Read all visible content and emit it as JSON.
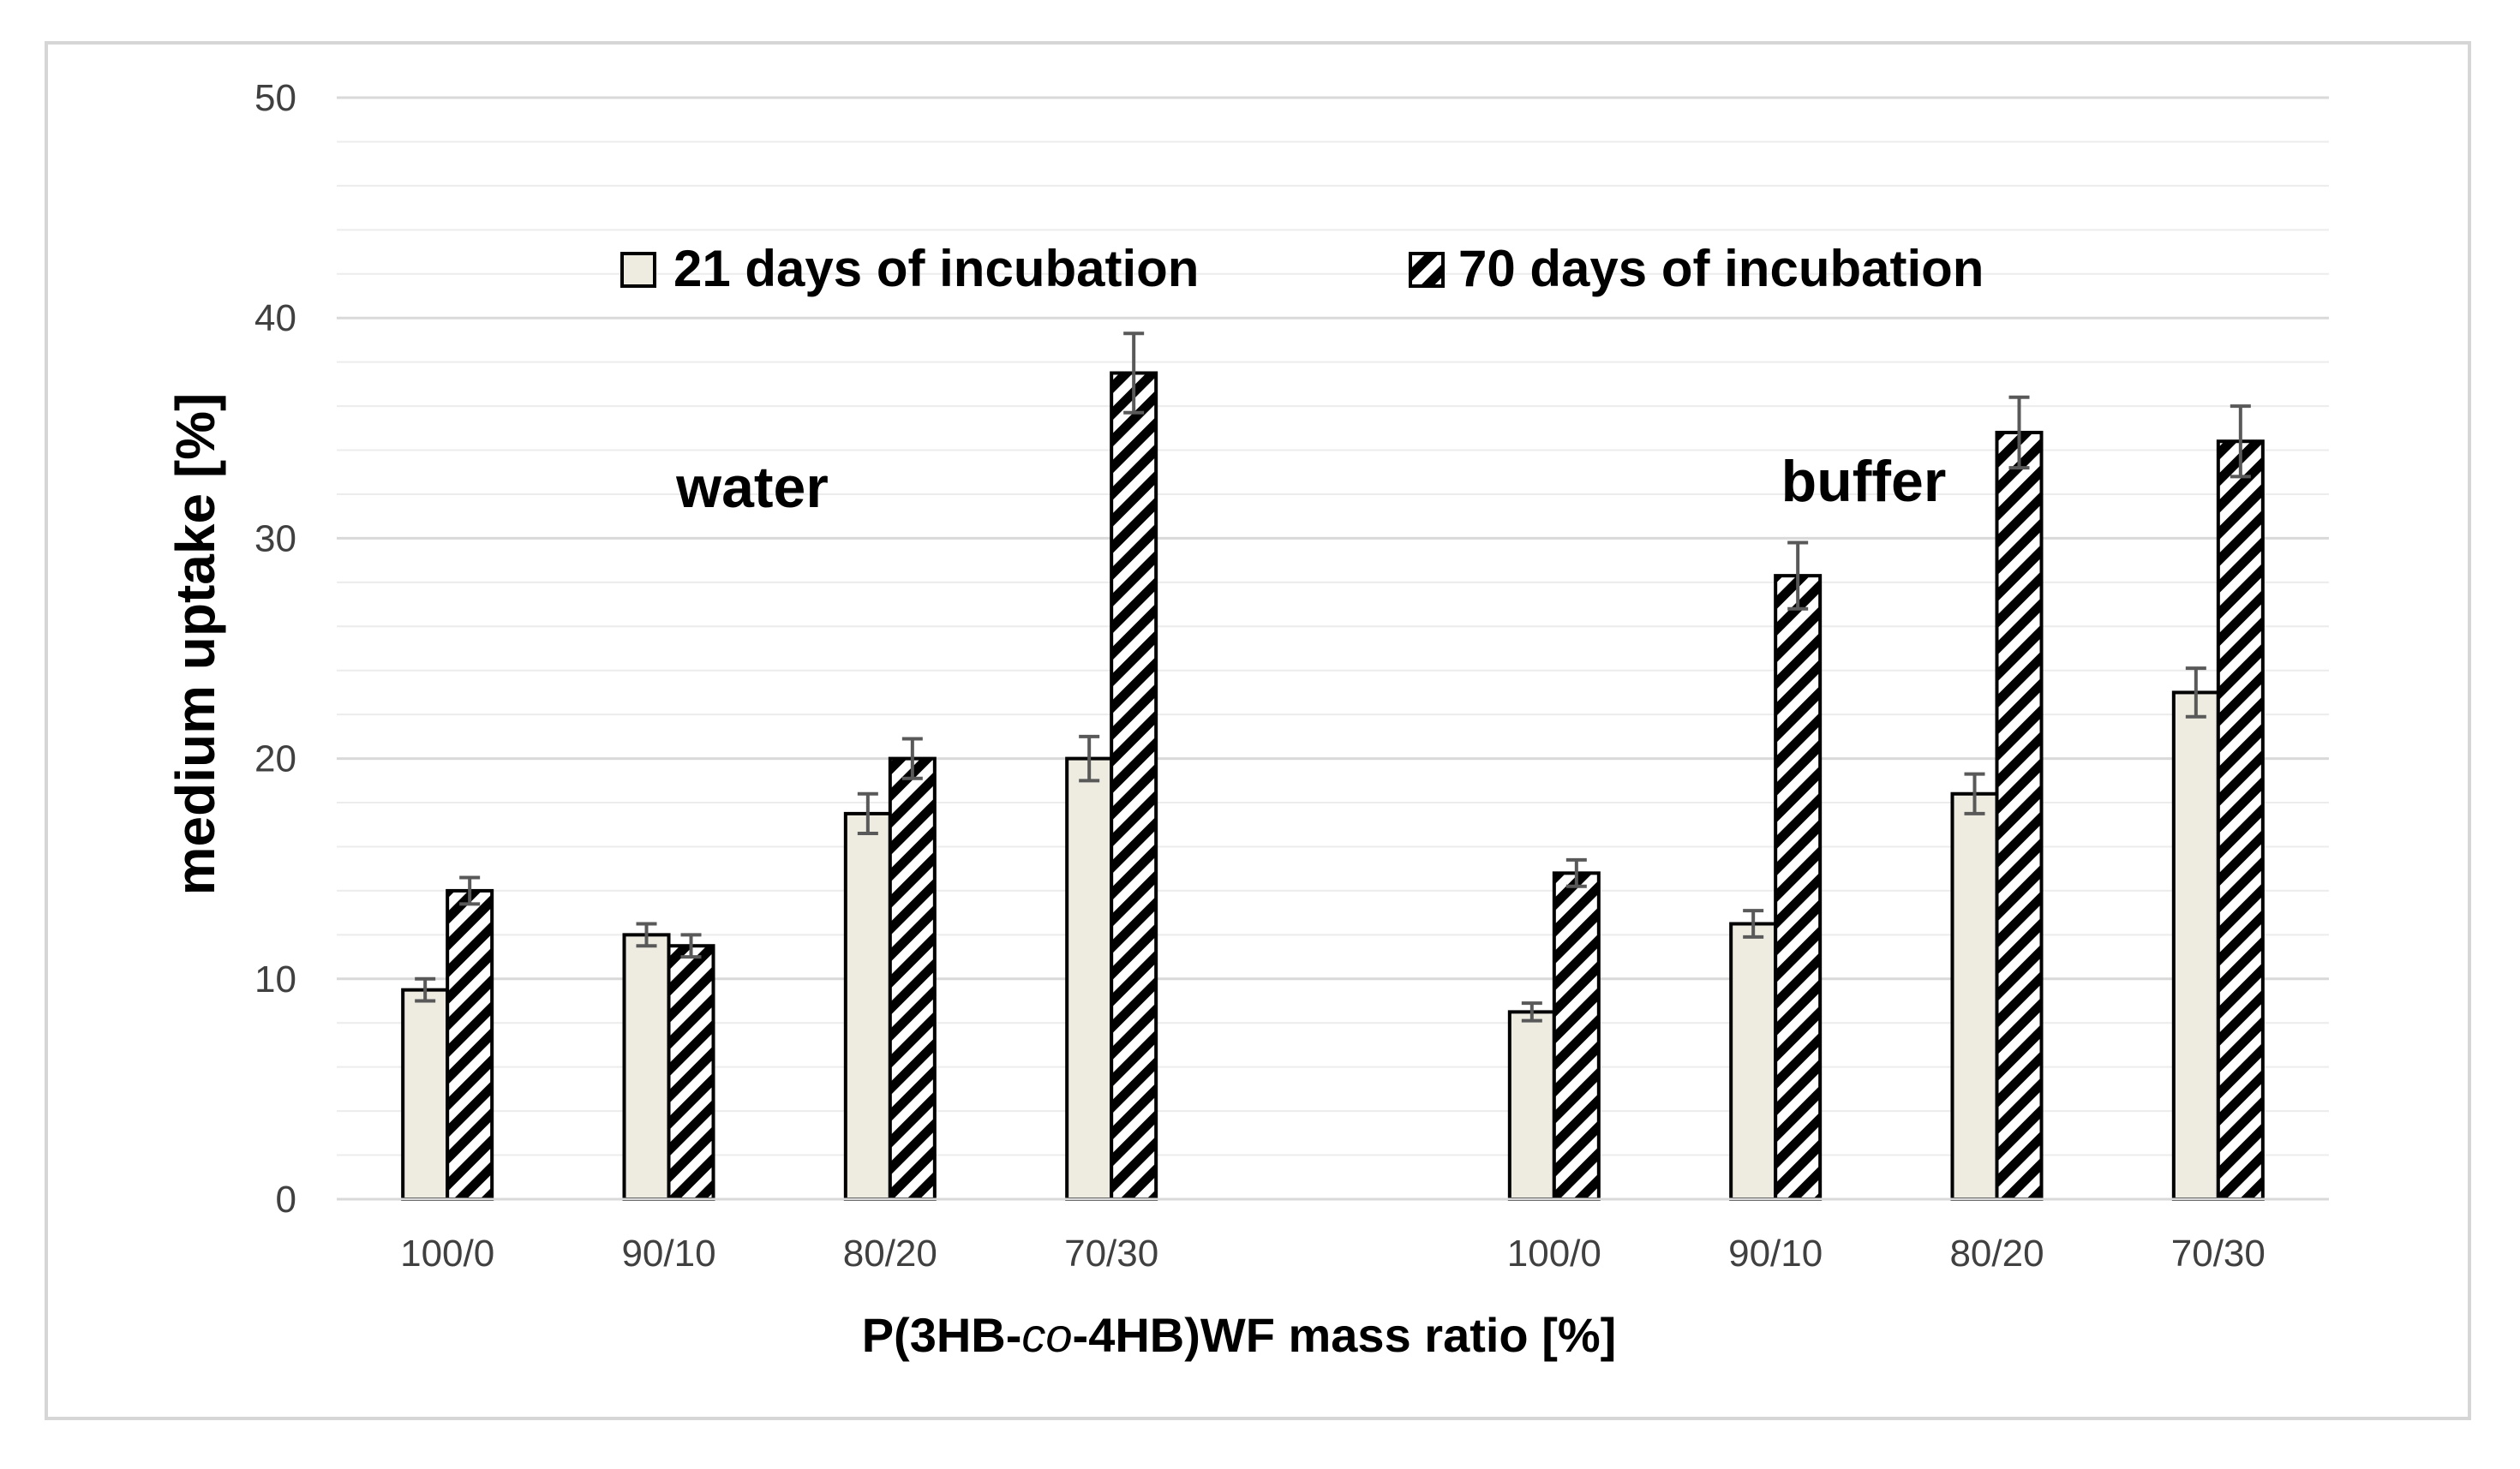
{
  "chart_data": {
    "type": "bar",
    "title": "",
    "xlabel_parts": [
      "P(3HB-",
      "co",
      "-4HB)WF mass ratio [%]"
    ],
    "ylabel": "medium uptake  [%]",
    "ylim": [
      0,
      50
    ],
    "y_major_ticks": [
      0,
      10,
      20,
      30,
      40,
      50
    ],
    "y_minor_step": 2,
    "groups": [
      {
        "label": "water",
        "categories": [
          "100/0",
          "90/10",
          "80/20",
          "70/30"
        ]
      },
      {
        "label": "buffer",
        "categories": [
          "100/0",
          "90/10",
          "80/20",
          "70/30"
        ]
      }
    ],
    "series": [
      {
        "name": "21 days of incubation",
        "pattern": "solid",
        "fill": "#eeece1",
        "values": [
          9.5,
          12.0,
          17.5,
          20.0,
          8.5,
          12.5,
          18.4,
          23.0
        ],
        "errors": [
          0.5,
          0.5,
          0.9,
          1.0,
          0.4,
          0.6,
          0.9,
          1.1
        ]
      },
      {
        "name": "70 days of incubation",
        "pattern": "hatched",
        "fill": "#ffffff",
        "values": [
          14.0,
          11.5,
          20.0,
          37.5,
          14.8,
          28.3,
          34.8,
          34.4
        ],
        "errors": [
          0.6,
          0.5,
          0.9,
          1.8,
          0.6,
          1.5,
          1.6,
          1.6
        ]
      }
    ],
    "legend_position": "top-center",
    "grid": true
  },
  "colors": {
    "bar_outline": "#000000",
    "solid_fill": "#eeece1",
    "grid_major": "#d9d9d9",
    "grid_minor": "#ececec",
    "error_bar": "#595959"
  }
}
